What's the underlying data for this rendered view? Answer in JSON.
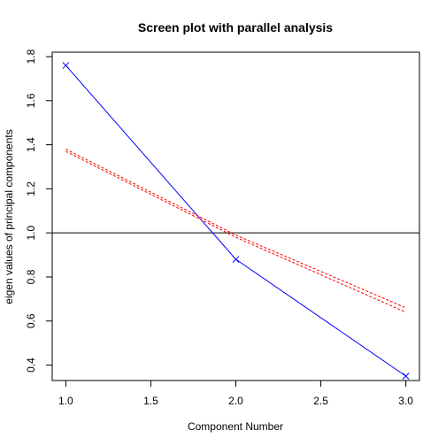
{
  "chart_data": {
    "type": "line",
    "title": "Screen plot with parallel analysis",
    "xlabel": "Component Number",
    "ylabel": "eigen values of principal components",
    "xlim": [
      0.92,
      3.08
    ],
    "ylim": [
      0.33,
      1.82
    ],
    "x_ticks": [
      1.0,
      1.5,
      2.0,
      2.5,
      3.0
    ],
    "x_tick_labels": [
      "1.0",
      "1.5",
      "2.0",
      "2.5",
      "3.0"
    ],
    "y_ticks": [
      0.4,
      0.6,
      0.8,
      1.0,
      1.2,
      1.4,
      1.6,
      1.8
    ],
    "y_tick_labels": [
      "0.4",
      "0.6",
      "0.8",
      "1.0",
      "1.2",
      "1.4",
      "1.6",
      "1.8"
    ],
    "grid": false,
    "reference_line": {
      "y": 1.0,
      "color": "#000000"
    },
    "series": [
      {
        "x": [
          1,
          2,
          3
        ],
        "values": [
          1.76,
          0.88,
          0.35
        ],
        "color": "#0000ff",
        "style": "solid",
        "marker": "x"
      },
      {
        "x": [
          1,
          2,
          3
        ],
        "values": [
          1.38,
          0.99,
          0.66
        ],
        "color": "#ff0000",
        "style": "dashed"
      },
      {
        "x": [
          1,
          2,
          3
        ],
        "values": [
          1.37,
          0.98,
          0.64
        ],
        "color": "#ff0000",
        "style": "dashed"
      }
    ]
  }
}
